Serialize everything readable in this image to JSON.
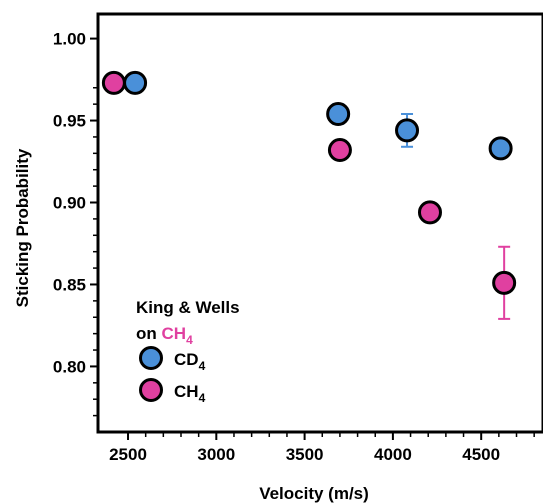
{
  "chart_data": {
    "type": "scatter",
    "xlabel": "Velocity (m/s)",
    "ylabel": "Sticking Probability",
    "xlim": [
      2330,
      4850
    ],
    "ylim": [
      0.76,
      1.015
    ],
    "xticks": [
      2500,
      3000,
      3500,
      4000,
      4500
    ],
    "yticks": [
      0.8,
      0.85,
      0.9,
      0.95,
      1.0
    ],
    "xtick_labels": [
      "2500",
      "3000",
      "3500",
      "4000",
      "4500"
    ],
    "ytick_labels": [
      "0.80",
      "0.85",
      "0.90",
      "0.95",
      "1.00"
    ],
    "grid": false,
    "legend_position": "bottom-left",
    "legend": {
      "title_line1": "King & Wells",
      "title_line2_prefix": "on ",
      "title_line2_main": "CH",
      "title_line2_sub": "4",
      "entries": [
        {
          "main": "CD",
          "sub": "4",
          "color": "#4a90d9"
        },
        {
          "main": "CH",
          "sub": "4",
          "color": "#e040a0"
        }
      ]
    },
    "series": [
      {
        "name": "CD4",
        "color": "#4a90d9",
        "points": [
          {
            "x": 2540,
            "y": 0.973,
            "err": 0
          },
          {
            "x": 3690,
            "y": 0.954,
            "err": 0.006
          },
          {
            "x": 4080,
            "y": 0.944,
            "err": 0.01
          },
          {
            "x": 4610,
            "y": 0.933,
            "err": 0
          }
        ]
      },
      {
        "name": "CH4",
        "color": "#e040a0",
        "points": [
          {
            "x": 2420,
            "y": 0.973,
            "err": 0
          },
          {
            "x": 3700,
            "y": 0.932,
            "err": 0
          },
          {
            "x": 4210,
            "y": 0.894,
            "err": 0.004
          },
          {
            "x": 4630,
            "y": 0.851,
            "err": 0.022
          }
        ]
      }
    ]
  }
}
